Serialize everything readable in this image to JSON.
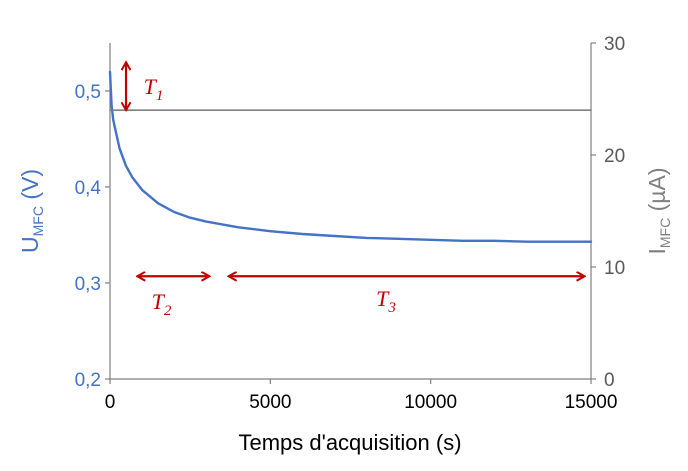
{
  "chart_data": {
    "type": "line",
    "xlabel": "Temps d'acquisition (s)",
    "ylabel_left": {
      "main": "U",
      "sub": "MFC",
      "unit": " (V)"
    },
    "ylabel_right": {
      "main": "I",
      "sub": "MFC",
      "unit": " (µA)"
    },
    "x_ticks": [
      "0",
      "5000",
      "10000",
      "15000"
    ],
    "x_tick_values": [
      0,
      5000,
      10000,
      15000
    ],
    "y_left_ticks": [
      "0,2",
      "0,3",
      "0,4",
      "0,5"
    ],
    "y_left_tick_values": [
      0.2,
      0.3,
      0.4,
      0.5
    ],
    "y_right_ticks": [
      "0",
      "10",
      "20",
      "30"
    ],
    "y_right_tick_values": [
      0,
      10,
      20,
      30
    ],
    "xlim": [
      0,
      15000
    ],
    "ylim_left": [
      0.2,
      0.55
    ],
    "ylim_right": [
      0,
      30
    ],
    "grid": false,
    "series": [
      {
        "axis": "left",
        "color": "#4472c4",
        "x": [
          0,
          50,
          100,
          200,
          300,
          500,
          700,
          1000,
          1500,
          2000,
          2500,
          3000,
          4000,
          5000,
          6000,
          7000,
          8000,
          9000,
          10000,
          11000,
          12000,
          13000,
          14000,
          15000
        ],
        "y": [
          0.52,
          0.485,
          0.47,
          0.455,
          0.44,
          0.422,
          0.41,
          0.397,
          0.383,
          0.374,
          0.368,
          0.364,
          0.358,
          0.354,
          0.351,
          0.349,
          0.347,
          0.346,
          0.345,
          0.344,
          0.344,
          0.343,
          0.343,
          0.343
        ]
      },
      {
        "axis": "right",
        "color": "#808080",
        "x": [
          0,
          15000
        ],
        "y": [
          24,
          24
        ]
      }
    ],
    "annotations": [
      {
        "main": "T",
        "sub": "1",
        "direction": "vertical",
        "x": 500,
        "y_range": [
          0.48,
          0.53
        ],
        "label_x": 1050,
        "label_y": 0.497
      },
      {
        "main": "T",
        "sub": "2",
        "direction": "horizontal",
        "x_range": [
          850,
          3100
        ],
        "y": 0.307,
        "label_x": 1300,
        "label_y": 0.273
      },
      {
        "main": "T",
        "sub": "3",
        "direction": "horizontal",
        "x_range": [
          3700,
          14800
        ],
        "y": 0.307,
        "label_x": 8300,
        "label_y": 0.276
      }
    ],
    "annotation_color": "#c00000"
  }
}
